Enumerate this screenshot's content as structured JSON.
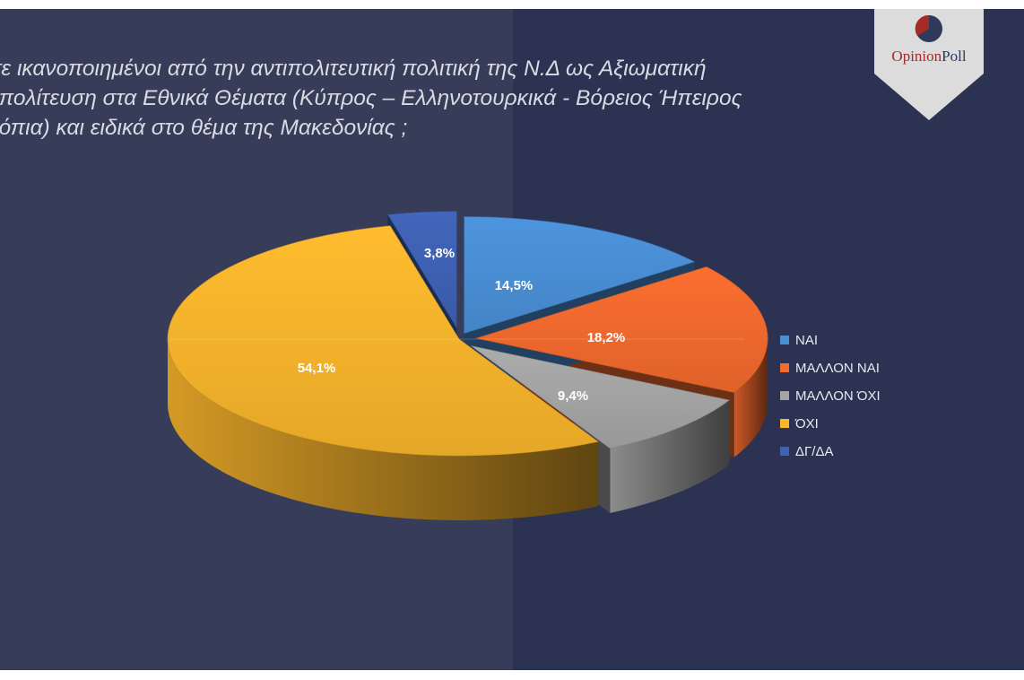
{
  "title_lines": [
    "ίστε ικανοποιημένοι από την αντιπολιτευτική πολιτική της Ν.Δ ως Αξιωματική",
    "ντιπολίτευση στα Εθνικά Θέματα  (Κύπρος – Ελληνοτουρκικά - Βόρειος Ήπειρος",
    " Σκόπια) και ειδικά στο θέμα της Μακεδονίας  ;"
  ],
  "logo": {
    "text_opinion": "Opinion",
    "text_poll": "Poll",
    "accent": "#a52a2a",
    "navy": "#2f3a5a"
  },
  "chart_data": {
    "type": "pie",
    "style": "3d-exploded",
    "legend_position": "right",
    "categories": [
      "ΝΑΙ",
      "ΜΑΛΛΟΝ ΝΑΙ",
      "ΜΑΛΛΟΝ ΌΧΙ",
      "ΌΧΙ",
      "ΔΓ/ΔΑ"
    ],
    "values": [
      14.5,
      18.2,
      9.4,
      54.1,
      3.8
    ],
    "labels": [
      "14,5%",
      "18,2%",
      "9,4%",
      "54,1%",
      "3,8%"
    ],
    "colors": [
      "#4a8fd6",
      "#f26a2e",
      "#a5a5a5",
      "#f9b52c",
      "#3f62b5"
    ]
  }
}
